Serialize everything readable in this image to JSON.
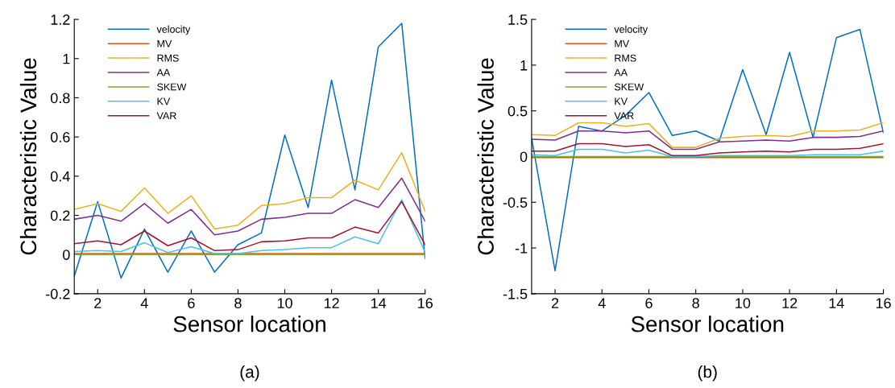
{
  "chart_data": [
    {
      "type": "line",
      "xlabel": "Sensor location",
      "ylabel": "Characteristic Value",
      "annotations": [
        "(a)"
      ],
      "x": [
        1,
        2,
        3,
        4,
        5,
        6,
        7,
        8,
        9,
        10,
        11,
        12,
        13,
        14,
        15,
        16
      ],
      "xlim": [
        1,
        16
      ],
      "xticks": [
        2,
        4,
        6,
        8,
        10,
        12,
        14,
        16
      ],
      "ylim": [
        -0.2,
        1.2
      ],
      "yticks": [
        -0.2,
        0,
        0.2,
        0.4,
        0.6,
        0.8,
        1,
        1.2
      ],
      "legend": "top left",
      "grid": false,
      "series": [
        {
          "name": "velocity",
          "color": "#0072bd",
          "values": [
            -0.11,
            0.27,
            -0.12,
            0.13,
            -0.09,
            0.12,
            -0.09,
            0.05,
            0.11,
            0.61,
            0.24,
            0.89,
            0.33,
            1.06,
            1.18,
            -0.02
          ]
        },
        {
          "name": "MV",
          "color": "#d95319",
          "values": [
            0.005,
            0.005,
            0.005,
            0.005,
            0.005,
            0.005,
            0.005,
            0.005,
            0.005,
            0.005,
            0.005,
            0.005,
            0.005,
            0.005,
            0.005,
            0.005
          ]
        },
        {
          "name": "RMS",
          "color": "#edb120",
          "values": [
            0.23,
            0.26,
            0.22,
            0.34,
            0.21,
            0.3,
            0.13,
            0.15,
            0.25,
            0.26,
            0.29,
            0.29,
            0.38,
            0.33,
            0.52,
            0.22
          ]
        },
        {
          "name": "AA",
          "color": "#7e2f8e",
          "values": [
            0.18,
            0.2,
            0.17,
            0.26,
            0.16,
            0.23,
            0.1,
            0.12,
            0.18,
            0.19,
            0.21,
            0.21,
            0.28,
            0.24,
            0.39,
            0.17
          ]
        },
        {
          "name": "SKEW",
          "color": "#77ac30",
          "values": [
            0,
            0,
            0,
            0,
            0,
            0,
            0,
            0,
            0,
            0,
            0,
            0,
            0,
            0,
            0,
            0
          ]
        },
        {
          "name": "KV",
          "color": "#4dbeee",
          "values": [
            0.015,
            0.02,
            0.015,
            0.06,
            0.01,
            0.04,
            0.005,
            0.005,
            0.02,
            0.025,
            0.035,
            0.035,
            0.09,
            0.055,
            0.28,
            0.01
          ]
        },
        {
          "name": "VAR",
          "color": "#a2142f",
          "values": [
            0.055,
            0.07,
            0.05,
            0.12,
            0.045,
            0.085,
            0.02,
            0.025,
            0.065,
            0.07,
            0.085,
            0.085,
            0.14,
            0.11,
            0.27,
            0.05
          ]
        }
      ]
    },
    {
      "type": "line",
      "xlabel": "Sensor location",
      "ylabel": "Characteristic Value",
      "annotations": [
        "(b)"
      ],
      "x": [
        1,
        2,
        3,
        4,
        5,
        6,
        7,
        8,
        9,
        10,
        11,
        12,
        13,
        14,
        15,
        16
      ],
      "xlim": [
        1,
        16
      ],
      "xticks": [
        2,
        4,
        6,
        8,
        10,
        12,
        14,
        16
      ],
      "ylim": [
        -1.5,
        1.5
      ],
      "yticks": [
        -1.5,
        -1,
        -0.5,
        0,
        0.5,
        1,
        1.5
      ],
      "legend": "top left",
      "grid": false,
      "series": [
        {
          "name": "velocity",
          "color": "#0072bd",
          "values": [
            0.2,
            -1.25,
            0.33,
            0.28,
            0.45,
            0.7,
            0.23,
            0.28,
            0.17,
            0.95,
            0.24,
            1.14,
            0.21,
            1.3,
            1.39,
            0.26
          ]
        },
        {
          "name": "MV",
          "color": "#d95319",
          "values": [
            -0.01,
            -0.01,
            -0.01,
            -0.01,
            -0.01,
            -0.01,
            -0.01,
            -0.01,
            -0.01,
            -0.01,
            -0.01,
            -0.01,
            -0.01,
            -0.01,
            -0.01,
            -0.01
          ]
        },
        {
          "name": "RMS",
          "color": "#edb120",
          "values": [
            0.24,
            0.23,
            0.37,
            0.37,
            0.33,
            0.36,
            0.1,
            0.1,
            0.2,
            0.22,
            0.23,
            0.22,
            0.28,
            0.28,
            0.29,
            0.37
          ]
        },
        {
          "name": "AA",
          "color": "#7e2f8e",
          "values": [
            0.19,
            0.18,
            0.28,
            0.28,
            0.26,
            0.28,
            0.08,
            0.08,
            0.16,
            0.17,
            0.18,
            0.17,
            0.21,
            0.21,
            0.22,
            0.28
          ]
        },
        {
          "name": "SKEW",
          "color": "#77ac30",
          "values": [
            0,
            0,
            0,
            0,
            0,
            0,
            0,
            0,
            0,
            0,
            0,
            0,
            0,
            0,
            0,
            0
          ]
        },
        {
          "name": "KV",
          "color": "#4dbeee",
          "values": [
            0.02,
            0.01,
            0.08,
            0.08,
            0.04,
            0.07,
            0,
            0,
            0.01,
            0.01,
            0.01,
            0.01,
            0.02,
            0.02,
            0.02,
            0.06
          ]
        },
        {
          "name": "VAR",
          "color": "#a2142f",
          "values": [
            0.06,
            0.06,
            0.14,
            0.14,
            0.11,
            0.13,
            0.01,
            0.01,
            0.04,
            0.05,
            0.06,
            0.05,
            0.08,
            0.08,
            0.09,
            0.14
          ]
        }
      ]
    }
  ]
}
